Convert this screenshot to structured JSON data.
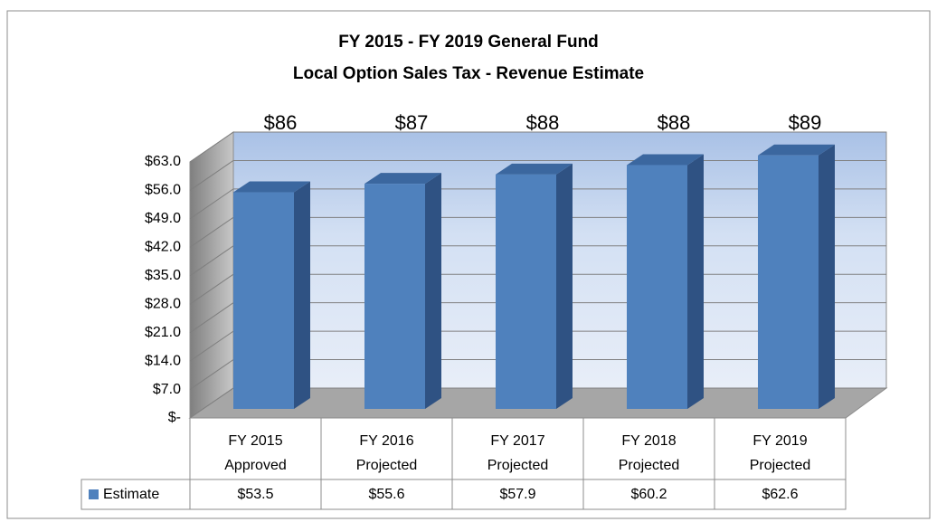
{
  "chart_data": {
    "type": "bar3d",
    "title": [
      "FY 2015 - FY 2019 General Fund",
      "Local Option Sales Tax - Revenue Estimate"
    ],
    "categories": [
      [
        "FY 2015",
        "Approved"
      ],
      [
        "FY 2016",
        "Projected"
      ],
      [
        "FY 2017",
        "Projected"
      ],
      [
        "FY 2018",
        "Projected"
      ],
      [
        "FY 2019",
        "Projected"
      ]
    ],
    "series": [
      {
        "name": "Estimate",
        "color": "#4f81bd",
        "values": [
          53.5,
          55.6,
          57.9,
          60.2,
          62.6
        ],
        "value_labels": [
          "$53.5",
          "$55.6",
          "$57.9",
          "$60.2",
          "$62.6"
        ]
      }
    ],
    "annotations": [
      "$86",
      "$87",
      "$88",
      "$88",
      "$89"
    ],
    "ylim": [
      0,
      63
    ],
    "yticks": [
      {
        "value": 0,
        "label": "$-"
      },
      {
        "value": 7,
        "label": "$7.0"
      },
      {
        "value": 14,
        "label": "$14.0"
      },
      {
        "value": 21,
        "label": "$21.0"
      },
      {
        "value": 28,
        "label": "$28.0"
      },
      {
        "value": 35,
        "label": "$35.0"
      },
      {
        "value": 42,
        "label": "$42.0"
      },
      {
        "value": 49,
        "label": "$49.0"
      },
      {
        "value": 56,
        "label": "$56.0"
      },
      {
        "value": 63,
        "label": "$63.0"
      }
    ],
    "grid": true,
    "legend": "table"
  }
}
